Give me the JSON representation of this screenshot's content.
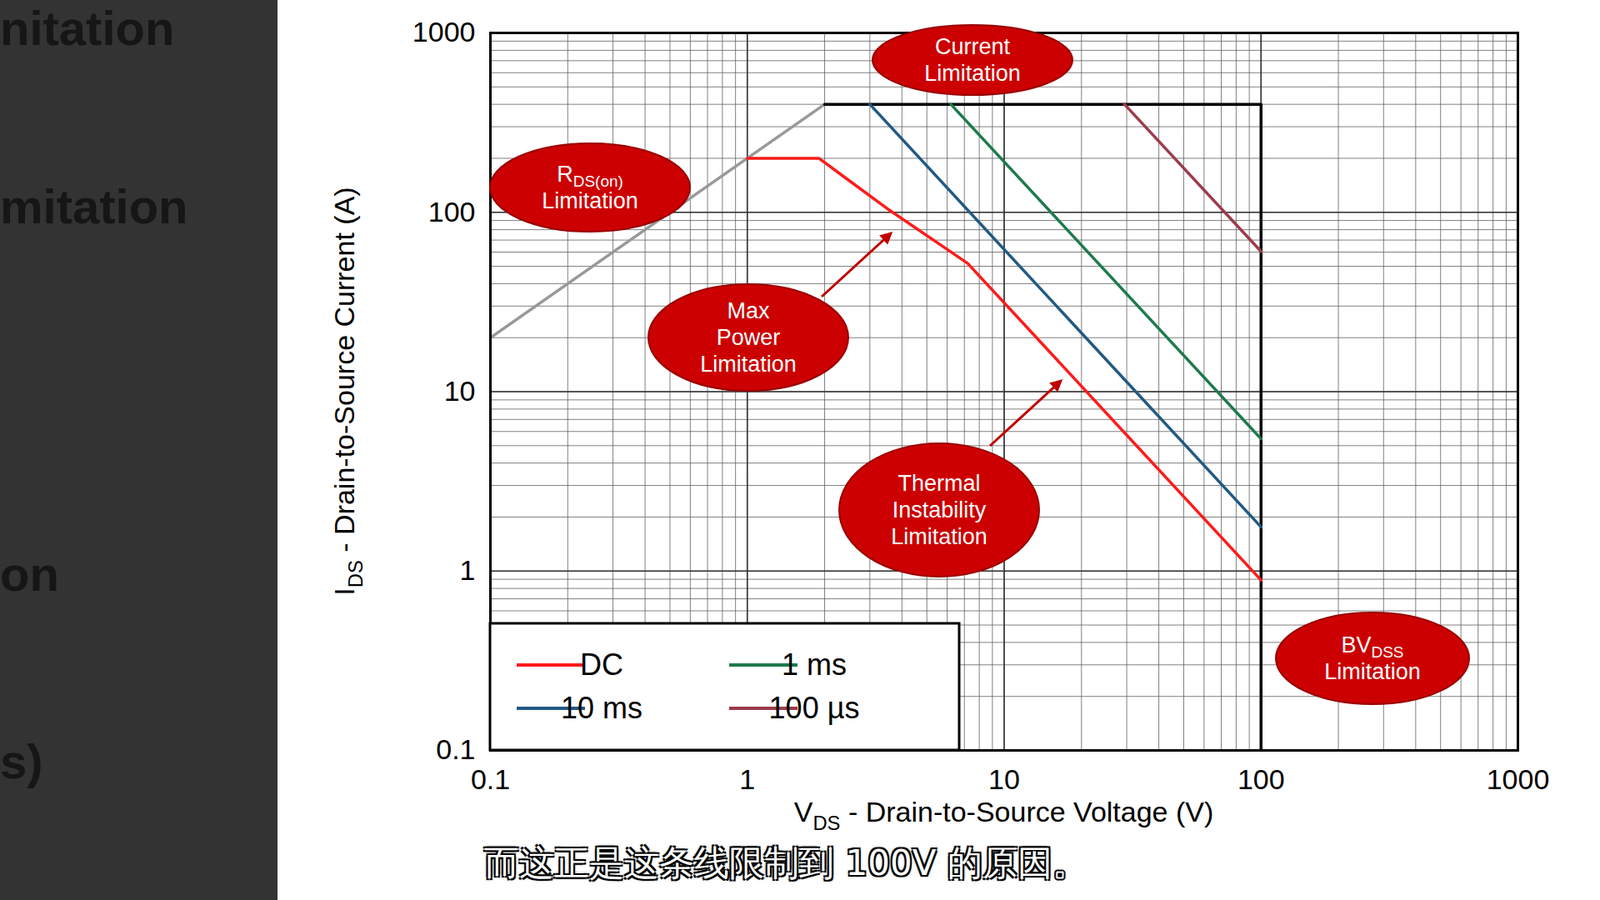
{
  "chart_data": {
    "type": "line",
    "x_label": {
      "text": "V",
      "sub": "DS",
      "rest": " - Drain-to-Source Voltage (V)"
    },
    "y_label": {
      "text": "I",
      "sub": "DS",
      "rest": " - Drain-to-Source Current (A)"
    },
    "log": true,
    "grid": true,
    "legend": "bottom-left",
    "xlim": [
      0.1,
      1000
    ],
    "ylim": [
      0.1,
      1000
    ],
    "xticks": [
      0.1,
      1,
      10,
      100,
      1000
    ],
    "yticks": [
      0.1,
      1,
      10,
      100,
      1000
    ],
    "series": [
      {
        "name": "DC",
        "color": "#ff1a1a",
        "x": [
          1,
          1.9,
          3.5,
          7.2,
          100
        ],
        "values": [
          200,
          200,
          105,
          52,
          0.89
        ]
      },
      {
        "name": "10 ms",
        "color": "#215a84",
        "x": [
          3,
          100
        ],
        "values": [
          400,
          1.76
        ]
      },
      {
        "name": "1 ms",
        "color": "#1e7a4c",
        "x": [
          6.2,
          100
        ],
        "values": [
          400,
          5.46
        ]
      },
      {
        "name": "100 µs",
        "color": "#9b3c4c",
        "x": [
          29.4,
          100
        ],
        "values": [
          400,
          60.5
        ]
      }
    ],
    "boundary_lines": [
      {
        "color": "#999999",
        "x": [
          0.1,
          2
        ],
        "values": [
          20,
          400
        ]
      },
      {
        "color": "#000000",
        "x": [
          2,
          100,
          100
        ],
        "values": [
          400,
          400,
          0.1
        ]
      }
    ],
    "annotations": [
      {
        "lines": [
          "Current",
          "Limitation"
        ],
        "arrow": false
      },
      {
        "lines": [
          "R",
          "Limitation"
        ],
        "sub": "DS(on)",
        "arrow": false
      },
      {
        "lines": [
          "Max",
          "Power",
          "Limitation"
        ],
        "arrow": true
      },
      {
        "lines": [
          "Thermal",
          "Instability",
          "Limitation"
        ],
        "arrow": true
      },
      {
        "lines": [
          "BV",
          "Limitation"
        ],
        "sub": "DSS",
        "arrow": false
      }
    ]
  },
  "caption": "而这正是这条线限制到 100V 的原因。",
  "side_panel": [
    "nitation",
    "mitation",
    "on",
    "s)"
  ]
}
